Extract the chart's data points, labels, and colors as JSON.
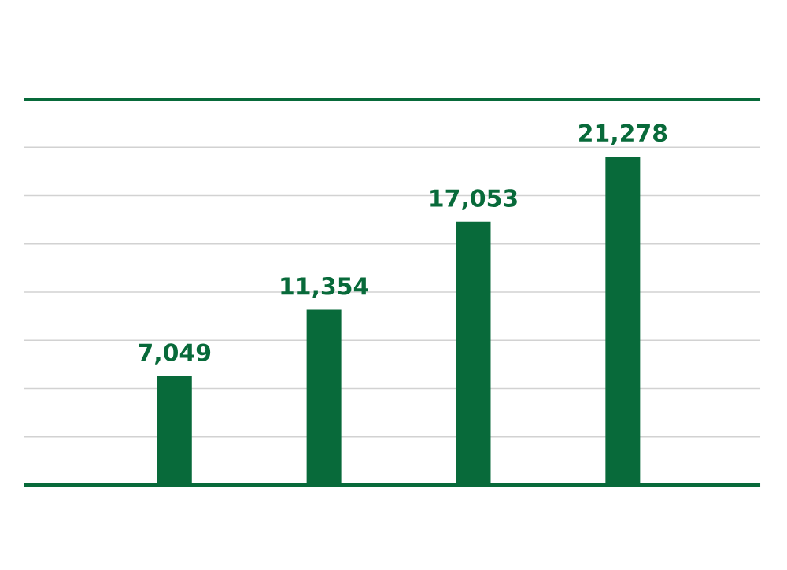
{
  "chart_data": {
    "type": "bar",
    "categories": [
      null,
      null,
      null,
      null
    ],
    "values": [
      7049,
      11354,
      17053,
      21278
    ],
    "value_labels": [
      "7,049",
      "11,354",
      "17,053",
      "21,278"
    ],
    "color": "#086a3a",
    "ylim": [
      0,
      25000
    ],
    "yticks": [
      {
        "value": 0,
        "label": null
      },
      {
        "value": 3125,
        "label": null
      },
      {
        "value": 6250,
        "label": null
      },
      {
        "value": 9375,
        "label": null
      },
      {
        "value": 12500,
        "label": null
      },
      {
        "value": 15625,
        "label": null
      },
      {
        "value": 18750,
        "label": null
      },
      {
        "value": 21875,
        "label": null
      },
      {
        "value": 25000,
        "label": null
      }
    ],
    "grid": "y"
  }
}
